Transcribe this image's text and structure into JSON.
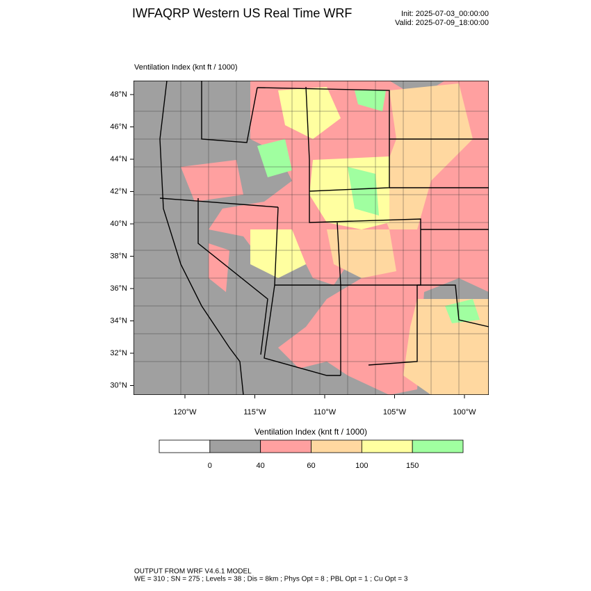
{
  "header": {
    "title": "IWFAQRP Western US Real Time WRF",
    "init": "Init: 2025-07-03_00:00:00",
    "valid": "Valid: 2025-07-09_18:00:00"
  },
  "plot": {
    "label": "Ventilation Index   (knt ft / 1000)",
    "lat_labels": [
      "48°N",
      "46°N",
      "44°N",
      "42°N",
      "40°N",
      "38°N",
      "36°N",
      "34°N",
      "32°N",
      "30°N"
    ],
    "lon_labels": [
      "120°W",
      "115°W",
      "110°W",
      "105°W",
      "100°W"
    ]
  },
  "colorbar": {
    "title": "Ventilation Index   (knt ft / 1000)",
    "levels": [
      0,
      40,
      60,
      100,
      150
    ],
    "colors": [
      "#ffffff",
      "#a0a0a0",
      "#ffa0a0",
      "#ffd8a0",
      "#ffffa0",
      "#a0ffa0"
    ]
  },
  "footer": {
    "line1": "OUTPUT FROM WRF V4.6.1 MODEL",
    "line2": "WE = 310 ; SN = 275 ; Levels = 38 ; Dis = 8km ; Phys Opt = 8 ; PBL Opt = 1 ; Cu Opt = 3"
  }
}
